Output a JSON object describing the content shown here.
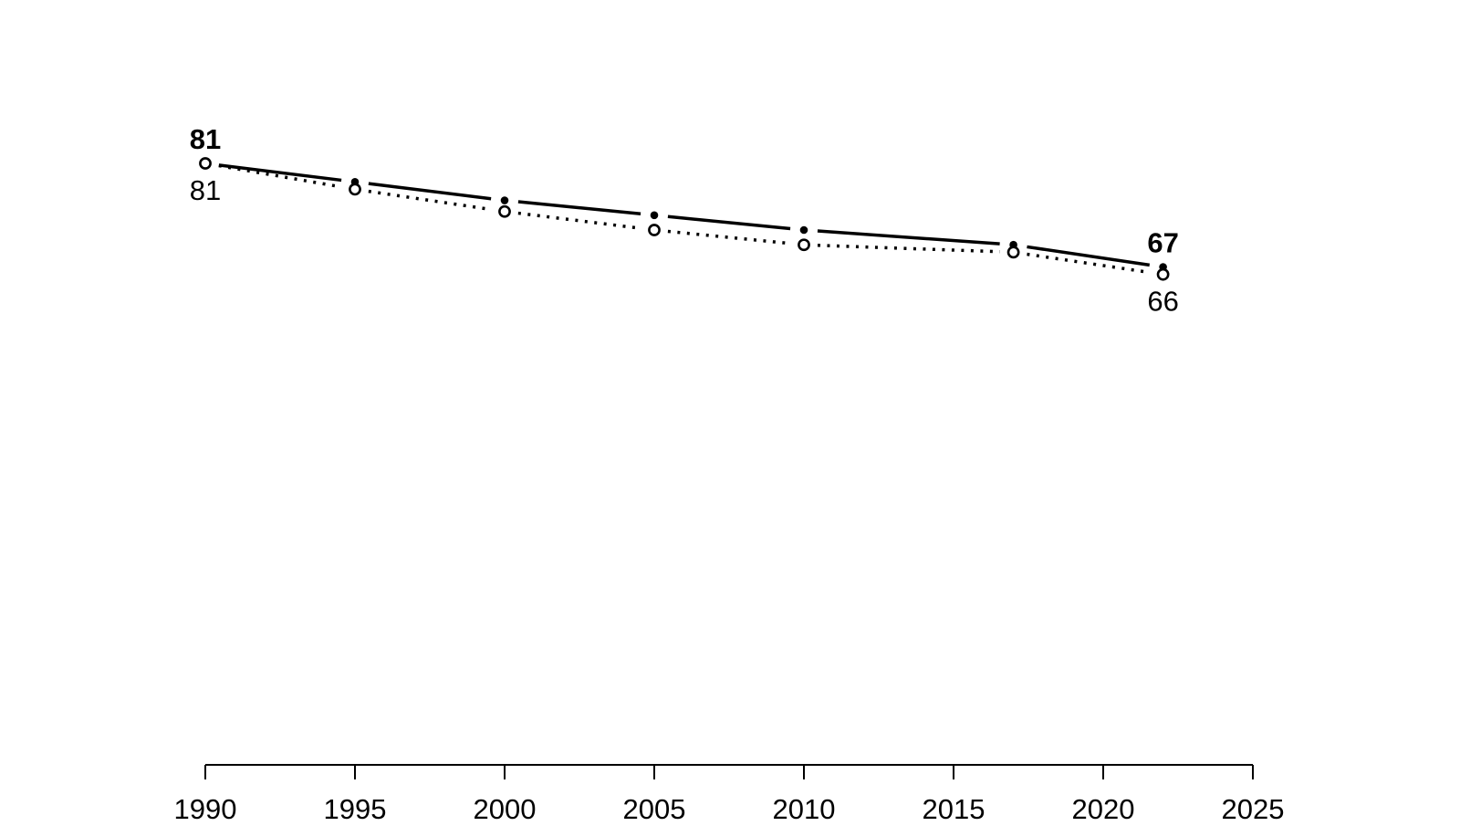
{
  "page": {
    "background_color": "#ffffff"
  },
  "chart_data": {
    "type": "line",
    "title": "",
    "xlabel": "",
    "ylabel": "",
    "x": [
      1990,
      1995,
      2000,
      2005,
      2010,
      2017,
      2022
    ],
    "series": [
      {
        "name": "upper-series-solid-filled-points",
        "line_style": "solid",
        "marker": "filled-circle",
        "color": "#000000",
        "values": [
          81,
          78.5,
          76,
          74,
          72,
          70,
          67
        ]
      },
      {
        "name": "lower-series-dotted-open-points",
        "line_style": "dotted",
        "marker": "open-circle",
        "color": "#000000",
        "values": [
          81,
          77.5,
          74.5,
          72,
          70,
          69,
          66
        ]
      }
    ],
    "point_labels": [
      {
        "text": "81",
        "year": 1990,
        "series": 0,
        "bold": true,
        "position": "above"
      },
      {
        "text": "81",
        "year": 1990,
        "series": 1,
        "bold": false,
        "position": "below"
      },
      {
        "text": "67",
        "year": 2022,
        "series": 0,
        "bold": true,
        "position": "above"
      },
      {
        "text": "66",
        "year": 2022,
        "series": 1,
        "bold": false,
        "position": "below"
      }
    ],
    "x_ticks": [
      "1990",
      "1995",
      "2000",
      "2005",
      "2010",
      "2015",
      "2020",
      "2025"
    ],
    "x_tick_values": [
      1990,
      1995,
      2000,
      2005,
      2010,
      2015,
      2020,
      2025
    ],
    "x_range": [
      1990,
      2025
    ],
    "ylim": [
      0,
      81
    ],
    "grid": false,
    "legend": "none",
    "axis_color": "#000000",
    "text_color": "#000000"
  }
}
